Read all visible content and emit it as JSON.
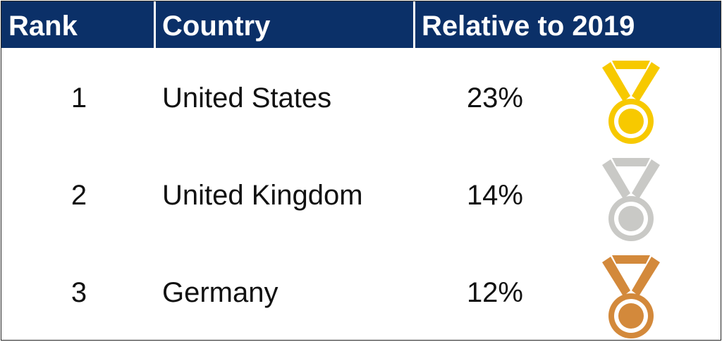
{
  "table": {
    "headers": [
      "Rank",
      "Country",
      "Relative to 2019"
    ],
    "rows": [
      [
        "1",
        "United States",
        "23%"
      ],
      [
        "2",
        "United Kingdom",
        "14%"
      ],
      [
        "3",
        "Germany",
        "12%"
      ]
    ]
  }
}
